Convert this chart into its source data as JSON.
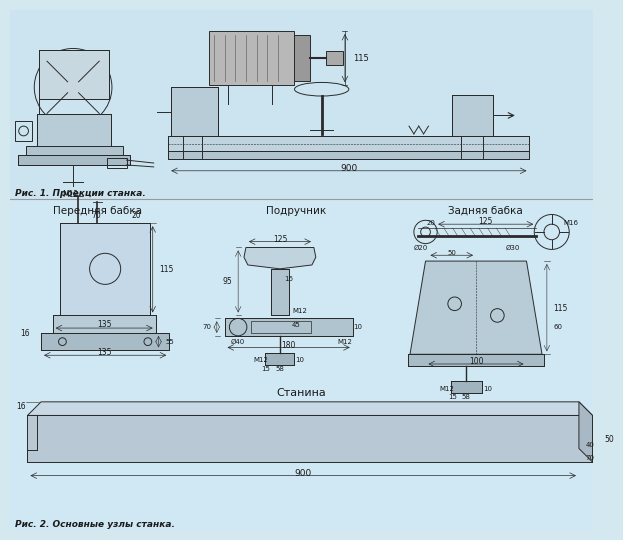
{
  "bg_color": "#d4e8f0",
  "line_color": "#2a2a2a",
  "title1": "Рис. 1. Проекции станка.",
  "title2": "Рис. 2. Основные узлы станка.",
  "fig_width": 6.0,
  "fig_height": 5.36,
  "label_передняя": "Передняя бабка",
  "label_подручник": "Подручник",
  "label_задняя": "Задняя бабка",
  "label_станина": "Станина",
  "dim_900_top": "900",
  "dim_900_bot": "900",
  "dim_115": "115",
  "dim_M12_1": "M12",
  "dim_70": "70",
  "dim_20_1": "20",
  "dim_135_1": "135",
  "dim_135_2": "135",
  "dim_115_2": "115",
  "dim_55": "55",
  "dim_16": "16",
  "dim_125_pod": "125",
  "dim_95": "95",
  "dim_16_pod": "16",
  "dim_40": "Ø40",
  "dim_M12_pod": "M12",
  "dim_45": "45",
  "dim_10_1": "10",
  "dim_70_pod": "70",
  "dim_180": "180",
  "dim_M12_pod2": "M12",
  "dim_10_2": "10",
  "dim_15_pod": "15",
  "dim_58_pod": "58",
  "dim_20_zad": "20",
  "dim_125_zad": "125",
  "dim_M16": "M16",
  "dim_20_zad2": "Ø20",
  "dim_50": "50",
  "dim_30": "Ø30",
  "dim_100": "100",
  "dim_115_zad": "115",
  "dim_60_zad": "60",
  "dim_M12_zad": "M12",
  "dim_10_zad": "10",
  "dim_15_zad": "15",
  "dim_58_zad": "58",
  "dim_16_stan": "16",
  "dim_50_stan": "50",
  "dim_40_stan": "40",
  "dim_70_stan": "70"
}
